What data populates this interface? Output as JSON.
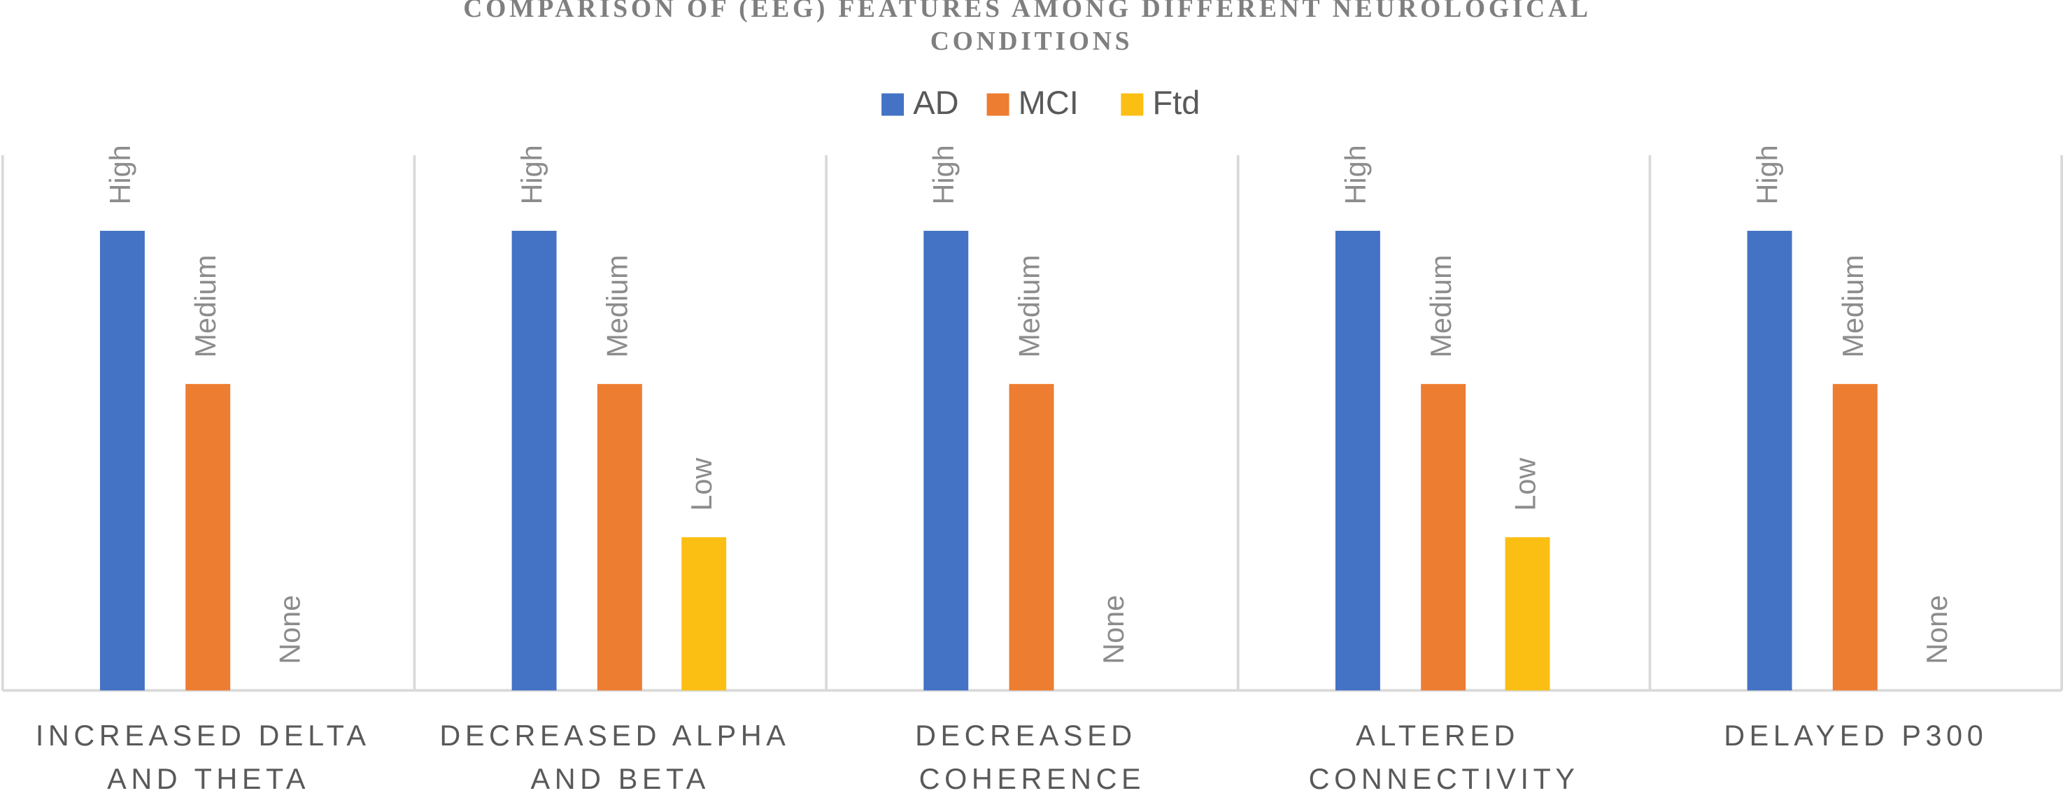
{
  "chart_data": {
    "type": "bar",
    "title": "COMPARISON OF (EEG) FEATURES AMONG DIFFERENT NEUROLOGICAL CONDITIONS",
    "categories": [
      "INCREASED DELTA AND THETA",
      "DECREASED ALPHA AND BETA",
      "DECREASED COHERENCE",
      "ALTERED CONNECTIVITY",
      "DELAYED P300"
    ],
    "series": [
      {
        "name": "AD",
        "color": "#4472c4",
        "values": [
          3,
          3,
          3,
          3,
          3
        ],
        "value_labels": [
          "High",
          "High",
          "High",
          "High",
          "High"
        ]
      },
      {
        "name": "MCI",
        "color": "#ed7d31",
        "values": [
          2,
          2,
          2,
          2,
          2
        ],
        "value_labels": [
          "Medium",
          "Medium",
          "Medium",
          "Medium",
          "Medium"
        ]
      },
      {
        "name": "Ftd",
        "color": "#fbbf14",
        "values": [
          0,
          1,
          0,
          1,
          0
        ],
        "value_labels": [
          "None",
          "Low",
          "None",
          "Low",
          "None"
        ]
      }
    ],
    "legend": "top"
  }
}
